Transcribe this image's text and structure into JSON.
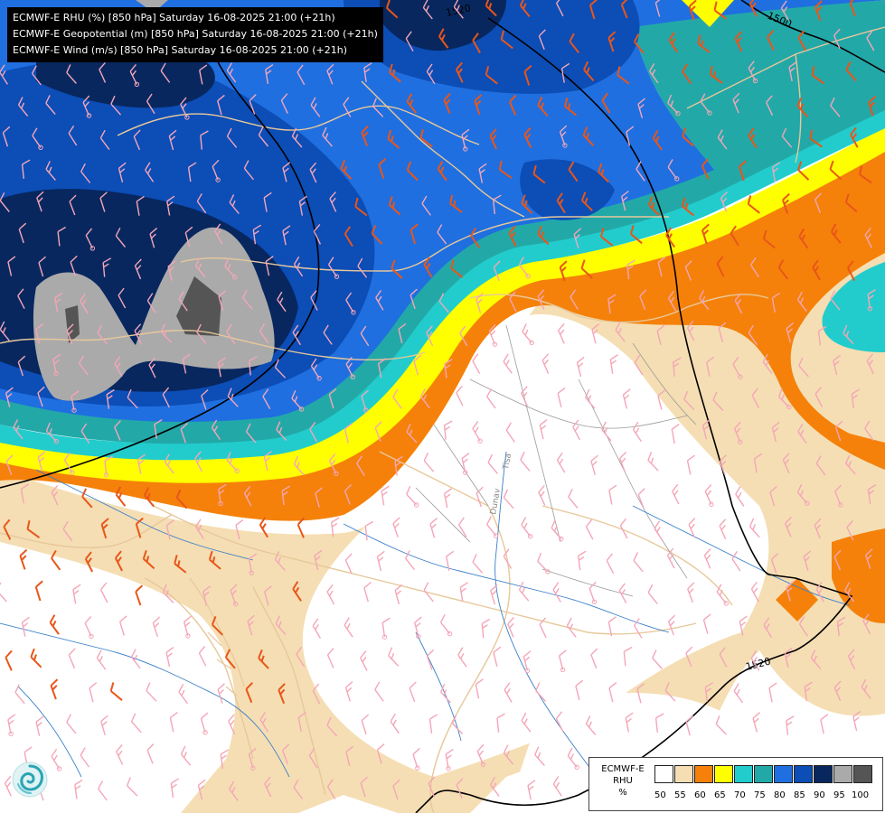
{
  "header": {
    "lines": [
      "ECMWF-E RHU (%) [850 hPa] Saturday 16-08-2025 21:00 (+21h)",
      "ECMWF-E Geopotential (m) [850 hPa] Saturday 16-08-2025 21:00 (+21h)",
      "ECMWF-E Wind (m/s) [850 hPa] Saturday 16-08-2025 21:00 (+21h)"
    ]
  },
  "contours": {
    "labels": [
      "1520",
      "1500",
      "1520"
    ]
  },
  "river_labels": [
    "Dunav",
    "Tisa"
  ],
  "legend": {
    "title_lines": [
      "ECMWF-E",
      "RHU",
      "%"
    ],
    "ticks": [
      "50",
      "55",
      "60",
      "65",
      "70",
      "75",
      "80",
      "85",
      "90",
      "95",
      "100"
    ],
    "colors": [
      "#ffffff",
      "#f5deb3",
      "#f5810a",
      "#ffff00",
      "#22cccc",
      "#23a8a8",
      "#1f6fe0",
      "#0c4db6",
      "#08275f",
      "#aaaaaa",
      "#555555"
    ]
  },
  "colors": {
    "wind_barb_default": "#f4a6b8",
    "wind_barb_strong": "#e8561a",
    "border": "#e7c89a",
    "river": "#3a7fc9",
    "contour": "#000000"
  },
  "logo_icon": "meteo-swirl-icon"
}
